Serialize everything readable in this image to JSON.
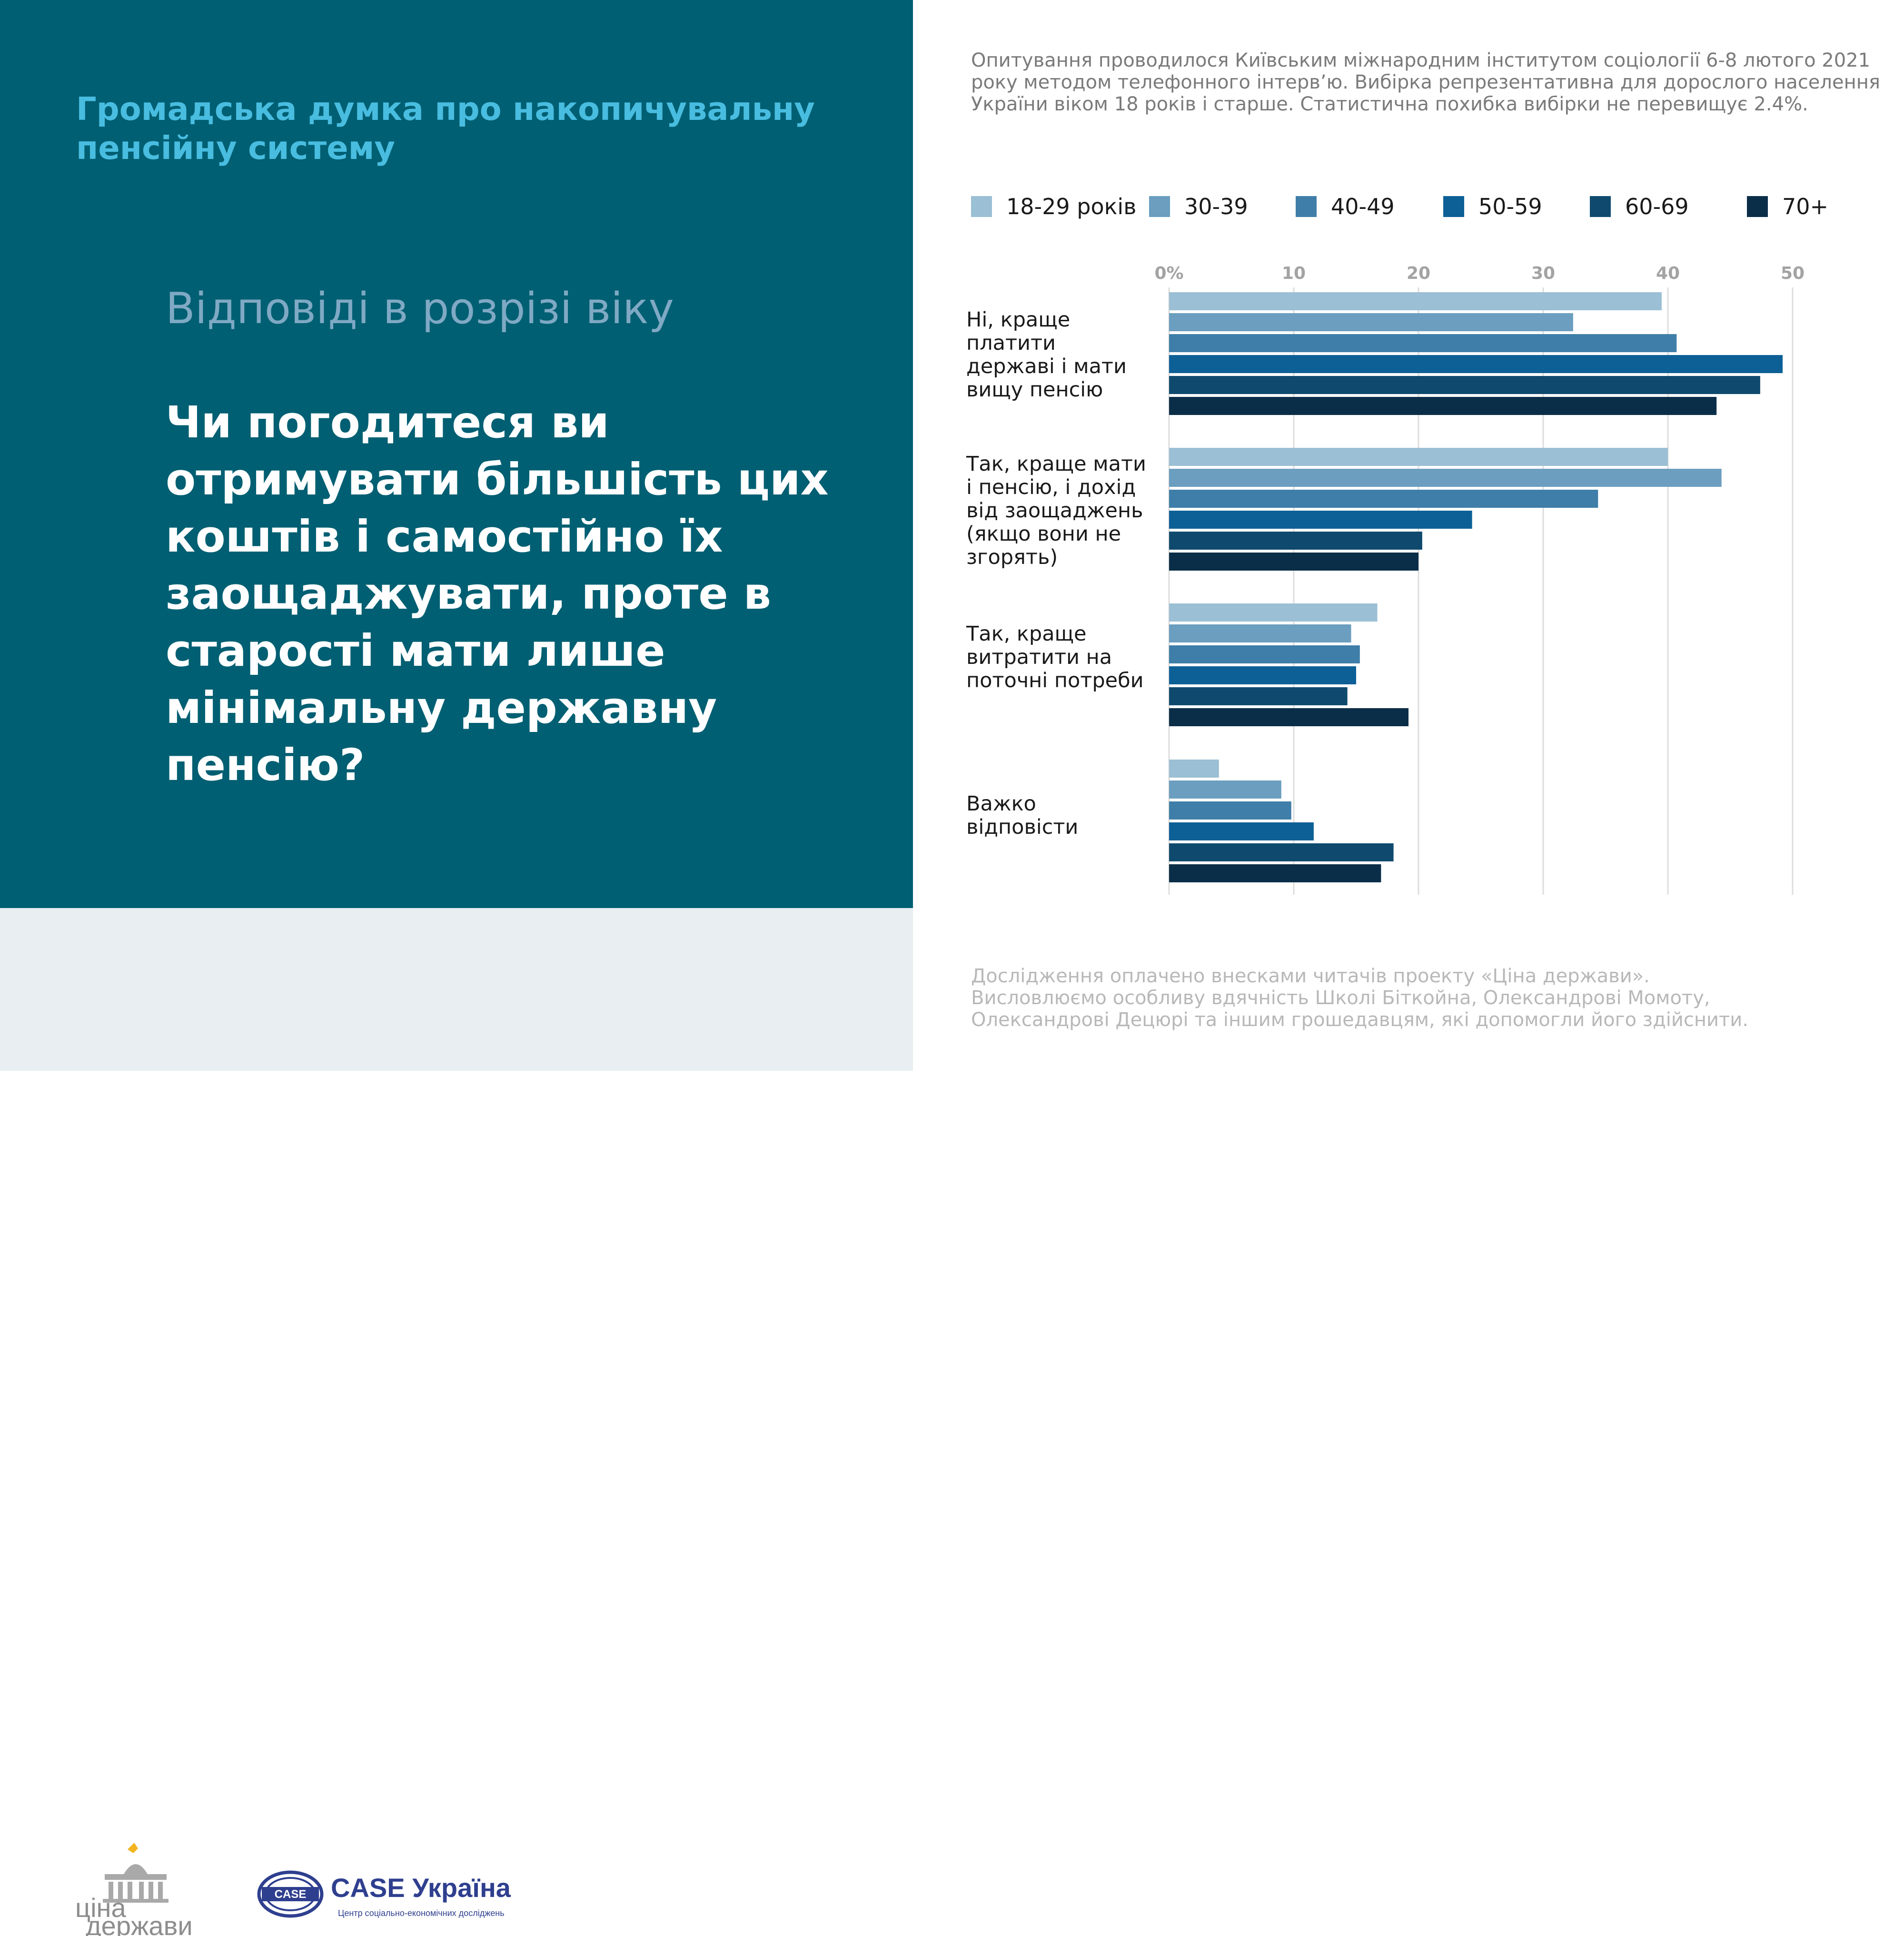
{
  "header": {
    "title": "Громадська думка про накопичувальну пенсійну систему"
  },
  "section": {
    "subtitle": "Відповіді в розрізі віку",
    "question": "Чи погодитеся ви отримувати більшість цих коштів і самостійно їх заощаджувати, проте в старості мати лише мінімальну державну пенсію?"
  },
  "notes": {
    "survey": "Опитування проводилося Київським міжнародним інститутом соціології 6-8 лютого 2021 року методом телефонного інтерв’ю. Вибірка репрезентативна для дорослого населення України віком 18 років і старше. Статистична похибка вибірки не перевищує 2.4%.",
    "funding": "Дослідження оплачено внесками читачів проекту «Ціна держави». Висловлюємо особливу вдячність Школі Біткойна, Олександрові Момоту, Олександрові Децюрі та іншим грошедавцям, які допомогли його здійснити."
  },
  "logos": {
    "cina_line1": "ціна",
    "cina_line2": "держави",
    "case_badge": "CASE",
    "case_name": "CASE Україна",
    "case_tagline": "Центр соціально-економічних досліджень"
  },
  "colors": {
    "panel": "#005f72",
    "accent": "#49bde0",
    "subtitle": "#7fa9c4",
    "footer_bg": "#e8eef1"
  },
  "chart_data": {
    "type": "bar",
    "orientation": "horizontal",
    "title": "",
    "xlabel": "",
    "ylabel": "",
    "xlim": [
      0,
      50
    ],
    "x_ticks": [
      "0%",
      "10",
      "20",
      "30",
      "40",
      "50"
    ],
    "grid": true,
    "legend_position": "top",
    "categories": [
      "Ні, краще платити державі і мати вищу пенсію",
      "Так, краще мати і пенсію, і дохід від заощаджень (якщо вони не згорять)",
      "Так, краще витратити на поточні потреби",
      "Важко відповісти"
    ],
    "series": [
      {
        "name": "18-29 років",
        "color": "#9bbfd4",
        "values": [
          39.5,
          40.0,
          16.7,
          4.0
        ]
      },
      {
        "name": "30-39",
        "color": "#6b9ebf",
        "values": [
          32.4,
          44.3,
          14.6,
          9.0
        ]
      },
      {
        "name": "40-49",
        "color": "#3f7ea8",
        "values": [
          40.7,
          34.4,
          15.3,
          9.8
        ]
      },
      {
        "name": "50-59",
        "color": "#0d6096",
        "values": [
          49.2,
          24.3,
          15.0,
          11.6
        ]
      },
      {
        "name": "60-69",
        "color": "#0f4a6e",
        "values": [
          47.4,
          20.3,
          14.3,
          18.0
        ]
      },
      {
        "name": "70+",
        "color": "#0b2e48",
        "values": [
          43.9,
          20.0,
          19.2,
          17.0
        ]
      }
    ]
  }
}
